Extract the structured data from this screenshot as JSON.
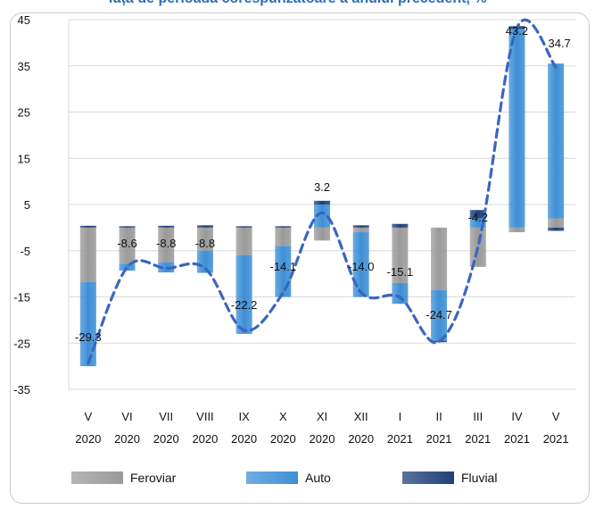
{
  "chart_data": {
    "type": "bar",
    "title": "față de perioada corespunzătoare a anului precedent, %",
    "categories": [
      [
        "V",
        "2020"
      ],
      [
        "VI",
        "2020"
      ],
      [
        "VII",
        "2020"
      ],
      [
        "VIII",
        "2020"
      ],
      [
        "IX",
        "2020"
      ],
      [
        "X",
        "2020"
      ],
      [
        "XI",
        "2020"
      ],
      [
        "XII",
        "2020"
      ],
      [
        "I",
        "2021"
      ],
      [
        "II",
        "2021"
      ],
      [
        "III",
        "2021"
      ],
      [
        "IV",
        "2021"
      ],
      [
        "V",
        "2021"
      ]
    ],
    "stacked": true,
    "series": [
      {
        "name": "Feroviar",
        "color": "#9a9a9a",
        "values": [
          -11.8,
          -7.8,
          -7.5,
          -5.0,
          -6.0,
          -4.0,
          -2.8,
          -1.0,
          -12.0,
          -13.5,
          -8.5,
          -1.0,
          2.0
        ]
      },
      {
        "name": "Auto",
        "color": "#3d8fd6",
        "values": [
          -18.2,
          -1.5,
          -2.2,
          -4.8,
          -17.0,
          -11.0,
          5.0,
          -14.0,
          -4.5,
          -11.0,
          2.0,
          43.0,
          33.5
        ]
      },
      {
        "name": "Fluvial",
        "color": "#1f3f7a",
        "values": [
          0.4,
          0.3,
          0.4,
          0.5,
          0.3,
          0.3,
          0.8,
          0.5,
          0.8,
          -0.3,
          1.8,
          0.6,
          -0.7
        ]
      }
    ],
    "total": {
      "values": [
        -29.3,
        -8.6,
        -8.8,
        -8.8,
        -22.2,
        -14.1,
        3.2,
        -14.0,
        -15.1,
        -24.7,
        -4.2,
        43.2,
        34.7
      ],
      "labels": [
        "-29.3",
        "-8.6",
        "-8.8",
        "-8.8",
        "-22.2",
        "-14.1",
        "3.2",
        "-14.0",
        "-15.1",
        "-24.7",
        "-4.2",
        "43.2",
        "34.7"
      ],
      "color": "#3a66c0",
      "style": "dashed"
    },
    "ylim": [
      -35,
      45
    ],
    "yticks": [
      45,
      35,
      25,
      15,
      5,
      -5,
      -15,
      -25,
      -35
    ],
    "grid": true,
    "legend": "bottom"
  }
}
